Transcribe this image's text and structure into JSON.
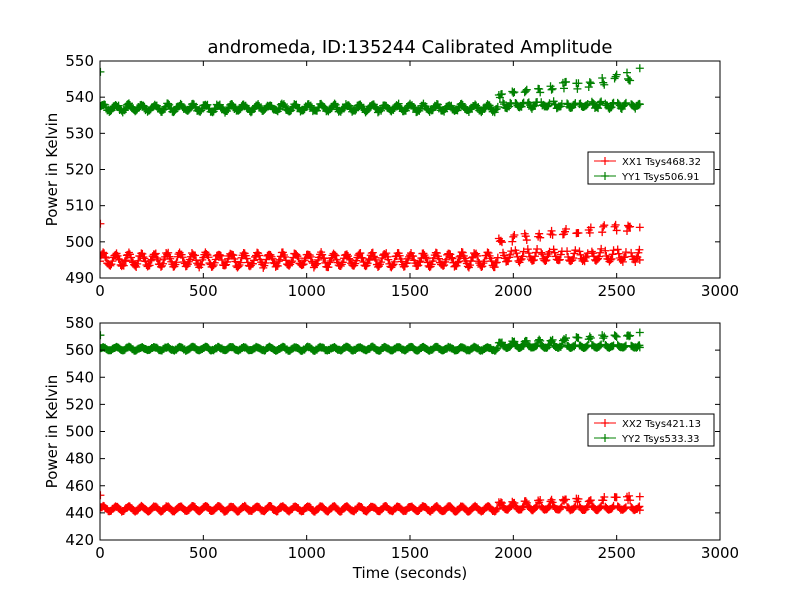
{
  "title": "andromeda, ID:135244 Calibrated Amplitude",
  "colors": {
    "XX": "#ff0000",
    "YY": "#008000",
    "frame": "#000000",
    "background": "#ffffff"
  },
  "chart_data": [
    {
      "type": "scatter",
      "title": "andromeda, ID:135244 Calibrated Amplitude",
      "xlabel": "",
      "ylabel": "Power in Kelvin",
      "xlim": [
        0,
        3000
      ],
      "ylim": [
        490,
        550
      ],
      "xticks": [
        0,
        500,
        1000,
        1500,
        2000,
        2500,
        3000
      ],
      "yticks": [
        490,
        500,
        510,
        520,
        530,
        540,
        550
      ],
      "grid": false,
      "marker": "+",
      "legend_position": "right",
      "series": [
        {
          "name": "XX1 Tsys468.32",
          "color": "#ff0000",
          "baseline": 495,
          "oscillation_amplitude": 1.8,
          "oscillation_period_s": 62,
          "late_segment": {
            "start": 1930,
            "end": 2600,
            "baseline": 496.5,
            "spike_max": [
              501.5,
              507
            ]
          },
          "x_range": [
            0,
            2610
          ],
          "outliers": [
            {
              "x": 2,
              "y": 505
            },
            {
              "x": 2612,
              "y": 504
            },
            {
              "x": 2612,
              "y": 495
            }
          ]
        },
        {
          "name": "YY1 Tsys506.91",
          "color": "#008000",
          "baseline": 537,
          "oscillation_amplitude": 0.9,
          "oscillation_period_s": 62,
          "late_segment": {
            "start": 1930,
            "end": 2600,
            "baseline": 538,
            "spike_max": [
              541,
              548
            ]
          },
          "x_range": [
            0,
            2610
          ],
          "outliers": [
            {
              "x": 2,
              "y": 547
            },
            {
              "x": 2612,
              "y": 548
            },
            {
              "x": 2612,
              "y": 538
            }
          ]
        }
      ]
    },
    {
      "type": "scatter",
      "title": "",
      "xlabel": "Time (seconds)",
      "ylabel": "Power in Kelvin",
      "xlim": [
        0,
        3000
      ],
      "ylim": [
        420,
        580
      ],
      "xticks": [
        0,
        500,
        1000,
        1500,
        2000,
        2500,
        3000
      ],
      "yticks": [
        420,
        440,
        460,
        480,
        500,
        520,
        540,
        560,
        580
      ],
      "grid": false,
      "marker": "+",
      "legend_position": "right",
      "series": [
        {
          "name": "XX2 Tsys421.13",
          "color": "#ff0000",
          "baseline": 443,
          "oscillation_amplitude": 1.8,
          "oscillation_period_s": 62,
          "late_segment": {
            "start": 1930,
            "end": 2600,
            "baseline": 444,
            "spike_max": [
              448,
              453
            ]
          },
          "x_range": [
            0,
            2610
          ],
          "outliers": [
            {
              "x": 2,
              "y": 453
            },
            {
              "x": 2612,
              "y": 452
            },
            {
              "x": 2612,
              "y": 442
            }
          ]
        },
        {
          "name": "YY2 Tsys533.33",
          "color": "#008000",
          "baseline": 561,
          "oscillation_amplitude": 1.2,
          "oscillation_period_s": 62,
          "late_segment": {
            "start": 1930,
            "end": 2600,
            "baseline": 563,
            "spike_max": [
              566,
              573
            ]
          },
          "x_range": [
            0,
            2610
          ],
          "outliers": [
            {
              "x": 2,
              "y": 571
            },
            {
              "x": 2612,
              "y": 573
            },
            {
              "x": 2612,
              "y": 562
            }
          ]
        }
      ]
    }
  ]
}
